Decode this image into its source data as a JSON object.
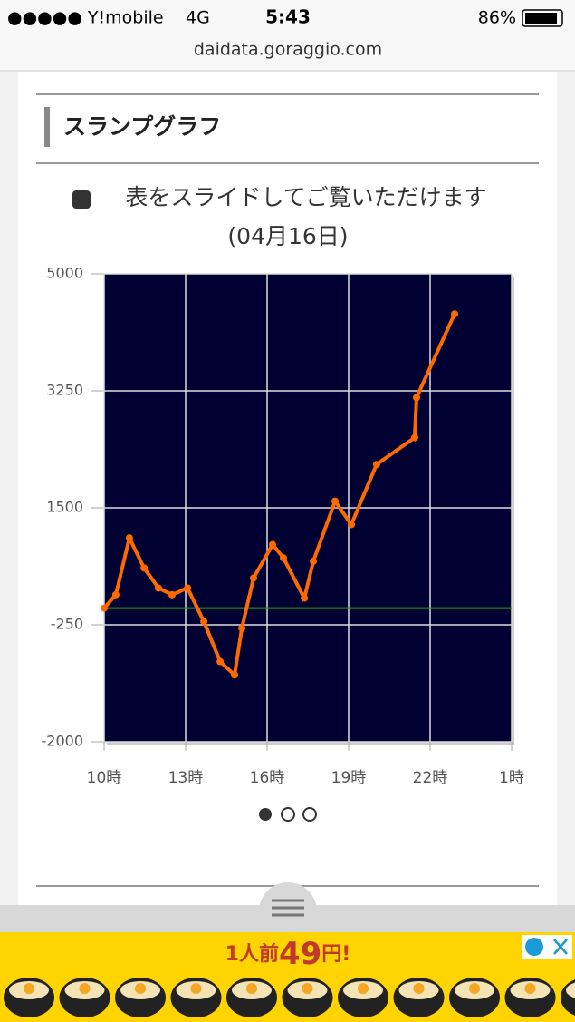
{
  "status_bar": {
    "carrier": "●●●●● Y!mobile",
    "network": "4G",
    "time": "5:43",
    "battery": "86%"
  },
  "url": "daidata.goraggio.com",
  "section": {
    "title": "スランプグラフ",
    "hint": "表をスライドしてご覧いただけます",
    "date": "(04月16日)"
  },
  "chart_data": {
    "type": "line",
    "x": [
      10,
      10.43,
      10.93,
      11.47,
      12,
      12.5,
      13.07,
      13.67,
      14.27,
      14.8,
      15.07,
      15.5,
      16.2,
      16.6,
      17.37,
      17.7,
      18.5,
      19.1,
      20.03,
      21.43,
      21.5,
      22.9
    ],
    "series": [
      {
        "color": "#ff6a00",
        "values": [
          0,
          200,
          1050,
          600,
          300,
          200,
          300,
          -200,
          -800,
          -1000,
          -300,
          450,
          950,
          750,
          150,
          700,
          1600,
          1250,
          2150,
          2550,
          3150,
          4400
        ]
      }
    ],
    "xlim": [
      10,
      25
    ],
    "xticks": [
      {
        "value": 10,
        "label": "10時"
      },
      {
        "value": 13,
        "label": "13時"
      },
      {
        "value": 16,
        "label": "16時"
      },
      {
        "value": 19,
        "label": "19時"
      },
      {
        "value": 22,
        "label": "22時"
      },
      {
        "value": 25,
        "label": "1時"
      }
    ],
    "ylim": [
      -2000,
      5000
    ],
    "yticks": [
      -2000,
      -250,
      1500,
      3250,
      5000
    ],
    "grid": true,
    "background": "#000033",
    "reference_line": 0,
    "reference_color": "#1aa31a"
  },
  "ad": {
    "prefix": "1人前",
    "price": "49",
    "suffix": "円!"
  }
}
